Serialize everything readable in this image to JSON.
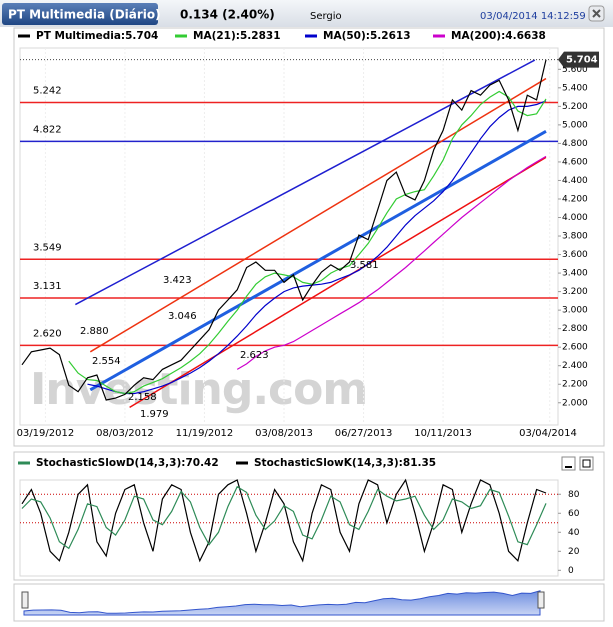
{
  "header": {
    "title": "PT Multimedia (Diário)",
    "change": "0.134 (2.40%)",
    "user": "Sergio",
    "datetime": "03/04/2014 14:12:59"
  },
  "watermark": "Investing.com",
  "chart_data": [
    {
      "type": "line",
      "series": [
        {
          "name": "PT Multimedia:5.704",
          "color": "#000000",
          "values": [
            2.41,
            2.55,
            2.57,
            2.59,
            2.52,
            2.19,
            2.12,
            2.27,
            2.3,
            2.03,
            2.05,
            2.09,
            2.19,
            2.27,
            2.25,
            2.36,
            2.41,
            2.46,
            2.57,
            2.68,
            2.79,
            3.0,
            3.11,
            3.22,
            3.46,
            3.52,
            3.43,
            3.43,
            3.3,
            3.38,
            3.11,
            3.27,
            3.41,
            3.49,
            3.43,
            3.52,
            3.81,
            3.76,
            4.08,
            4.4,
            4.49,
            4.24,
            4.19,
            4.4,
            4.73,
            4.94,
            5.27,
            5.16,
            5.37,
            5.32,
            5.43,
            5.48,
            5.27,
            4.94,
            5.32,
            5.27,
            5.704
          ]
        },
        {
          "name": "MA(21):5.2831",
          "color": "#33cc33",
          "values": [
            null,
            null,
            null,
            null,
            null,
            2.45,
            2.32,
            2.25,
            2.24,
            2.18,
            2.12,
            2.1,
            2.12,
            2.18,
            2.22,
            2.26,
            2.32,
            2.38,
            2.45,
            2.53,
            2.63,
            2.75,
            2.88,
            3.0,
            3.15,
            3.28,
            3.36,
            3.4,
            3.38,
            3.36,
            3.3,
            3.28,
            3.32,
            3.4,
            3.45,
            3.48,
            3.6,
            3.72,
            3.88,
            4.05,
            4.2,
            4.25,
            4.28,
            4.3,
            4.45,
            4.62,
            4.85,
            5.0,
            5.1,
            5.22,
            5.3,
            5.36,
            5.3,
            5.15,
            5.1,
            5.12,
            5.28
          ]
        },
        {
          "name": "MA(50):5.2613",
          "color": "#0000cc",
          "values": [
            null,
            null,
            null,
            null,
            null,
            null,
            null,
            2.2,
            2.18,
            2.15,
            2.12,
            2.1,
            2.1,
            2.12,
            2.15,
            2.18,
            2.22,
            2.27,
            2.32,
            2.38,
            2.45,
            2.53,
            2.62,
            2.72,
            2.83,
            2.95,
            3.05,
            3.13,
            3.2,
            3.24,
            3.26,
            3.27,
            3.28,
            3.3,
            3.34,
            3.38,
            3.43,
            3.5,
            3.58,
            3.68,
            3.8,
            3.92,
            4.02,
            4.1,
            4.18,
            4.28,
            4.4,
            4.55,
            4.7,
            4.85,
            4.98,
            5.08,
            5.16,
            5.2,
            5.2,
            5.22,
            5.26
          ]
        },
        {
          "name": "MA(200):4.6638",
          "color": "#cc00cc",
          "values": [
            null,
            null,
            null,
            null,
            null,
            null,
            null,
            null,
            null,
            null,
            null,
            null,
            null,
            null,
            null,
            null,
            null,
            null,
            null,
            null,
            null,
            null,
            null,
            2.36,
            2.42,
            2.5,
            2.56,
            2.6,
            2.62,
            2.66,
            2.72,
            2.78,
            2.84,
            2.9,
            2.96,
            3.02,
            3.08,
            3.15,
            3.22,
            3.3,
            3.38,
            3.46,
            3.55,
            3.64,
            3.73,
            3.82,
            3.91,
            4.0,
            4.08,
            4.16,
            4.24,
            4.32,
            4.4,
            4.47,
            4.54,
            4.6,
            4.66
          ]
        }
      ],
      "xticks": [
        {
          "value": 2.5,
          "label": "03/19/2012"
        },
        {
          "value": 11,
          "label": "08/03/2012"
        },
        {
          "value": 19.5,
          "label": "11/19/2012"
        },
        {
          "value": 28,
          "label": "03/08/2013"
        },
        {
          "value": 36.5,
          "label": "06/27/2013"
        },
        {
          "value": 45,
          "label": "10/11/2013"
        },
        {
          "value": 56.4,
          "label": "03/04/2014"
        }
      ],
      "ylim": [
        1.76,
        5.83
      ],
      "yticks": [
        {
          "value": 2,
          "label": "2.000"
        },
        {
          "value": 2.2,
          "label": "2.200"
        },
        {
          "value": 2.4,
          "label": "2.400"
        },
        {
          "value": 2.6,
          "label": "2.600"
        },
        {
          "value": 2.8,
          "label": "2.800"
        },
        {
          "value": 3,
          "label": "3.000"
        },
        {
          "value": 3.2,
          "label": "3.200"
        },
        {
          "value": 3.4,
          "label": "3.400"
        },
        {
          "value": 3.6,
          "label": "3.600"
        },
        {
          "value": 3.8,
          "label": "3.800"
        },
        {
          "value": 4,
          "label": "4.000"
        },
        {
          "value": 4.2,
          "label": "4.200"
        },
        {
          "value": 4.4,
          "label": "4.400"
        },
        {
          "value": 4.6,
          "label": "4.600"
        },
        {
          "value": 4.8,
          "label": "4.800"
        },
        {
          "value": 5,
          "label": "5.000"
        },
        {
          "value": 5.2,
          "label": "5.200"
        },
        {
          "value": 5.4,
          "label": "5.400"
        },
        {
          "value": 5.6,
          "label": "5.600"
        }
      ],
      "levels": [
        {
          "value": 5.242,
          "label": "5.242",
          "color": "#ee2222"
        },
        {
          "value": 4.822,
          "label": "4.822",
          "color": "#2222cc"
        },
        {
          "value": 3.549,
          "label": "3.549",
          "color": "#ee2222"
        },
        {
          "value": 3.131,
          "label": "3.131",
          "color": "#ee2222"
        },
        {
          "value": 2.62,
          "label": "2.620",
          "color": "#ee2222"
        }
      ],
      "trendlines": [
        {
          "color": "#1f1fd0",
          "width": 1.5,
          "start": [
            5.7,
            3.06
          ],
          "end": [
            54.8,
            5.7
          ]
        },
        {
          "color": "#1f5fe0",
          "width": 3,
          "start": [
            7.3,
            2.14
          ],
          "end": [
            56,
            4.93
          ]
        },
        {
          "color": "#ee3311",
          "width": 1.5,
          "start": [
            7.3,
            2.55
          ],
          "end": [
            56,
            5.5
          ]
        },
        {
          "color": "#ee1111",
          "width": 1.5,
          "start": [
            11.5,
            1.95
          ],
          "end": [
            56,
            4.65
          ]
        }
      ],
      "annotations": [
        "2.880",
        "2.554",
        "3.423",
        "3.046",
        "2.623",
        "2.158",
        "1.979",
        "3.581"
      ]
    },
    {
      "type": "line",
      "series": [
        {
          "name": "StochasticSlowD(14,3,3):70.42",
          "color": "#2e8b57",
          "values": [
            65,
            75,
            72,
            55,
            30,
            23,
            43,
            70,
            67,
            45,
            37,
            53,
            78,
            75,
            53,
            48,
            62,
            83,
            72,
            45,
            27,
            40,
            67,
            88,
            82,
            58,
            43,
            52,
            68,
            62,
            37,
            33,
            53,
            78,
            72,
            48,
            43,
            62,
            85,
            78,
            73,
            75,
            78,
            58,
            43,
            53,
            75,
            72,
            65,
            68,
            85,
            82,
            57,
            30,
            27,
            48,
            70.42
          ]
        },
        {
          "name": "StochasticSlowK(14,3,3):81.35",
          "color": "#000000",
          "values": [
            70,
            85,
            60,
            20,
            10,
            40,
            80,
            90,
            30,
            15,
            60,
            85,
            90,
            50,
            20,
            75,
            90,
            85,
            40,
            10,
            30,
            80,
            90,
            95,
            60,
            20,
            50,
            85,
            70,
            30,
            10,
            60,
            90,
            85,
            40,
            20,
            70,
            95,
            90,
            50,
            80,
            95,
            60,
            20,
            50,
            90,
            85,
            40,
            70,
            95,
            90,
            60,
            20,
            10,
            50,
            85,
            81.35
          ]
        }
      ],
      "ylim": [
        -6,
        95
      ],
      "yticks": [
        0,
        20,
        40,
        60,
        80
      ],
      "levels": [
        80,
        50
      ]
    }
  ]
}
